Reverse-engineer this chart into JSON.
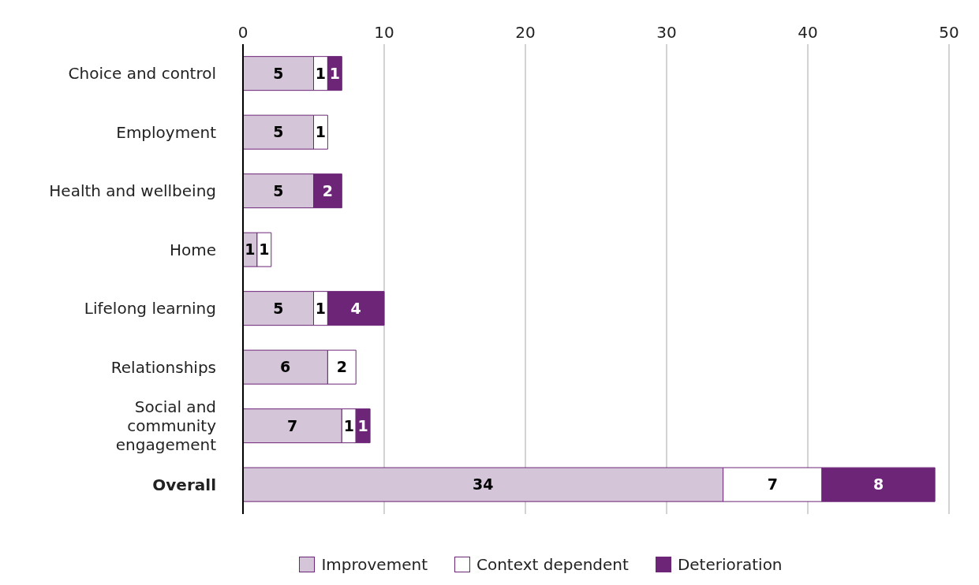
{
  "chart_data": {
    "type": "bar",
    "orientation": "horizontal",
    "stacked": true,
    "categories": [
      "Choice and control",
      "Employment",
      "Health and wellbeing",
      "Home",
      "Lifelong learning",
      "Relationships",
      "Social and community engagement",
      "Overall"
    ],
    "series": [
      {
        "name": "Improvement",
        "color": "#d5c5d9",
        "values": [
          5,
          5,
          5,
          1,
          5,
          6,
          7,
          34
        ]
      },
      {
        "name": "Context dependent",
        "color": "#ffffff",
        "values": [
          1,
          1,
          null,
          1,
          1,
          2,
          1,
          7
        ]
      },
      {
        "name": "Deterioration",
        "color": "#6c2577",
        "values": [
          1,
          null,
          2,
          null,
          4,
          null,
          1,
          8
        ]
      }
    ],
    "xlim": [
      0,
      50
    ],
    "xticks": [
      0,
      10,
      20,
      30,
      40,
      50
    ],
    "grid": "x",
    "legend": "bottom",
    "data_labels": true
  }
}
